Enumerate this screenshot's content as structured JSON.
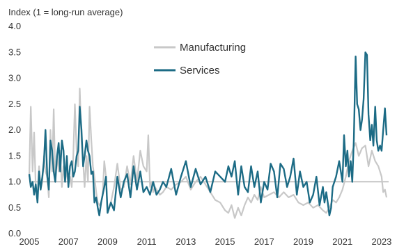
{
  "chart_data": {
    "type": "line",
    "ylabel": "Index (1 = long-run average)",
    "xlabel": "",
    "ylim": [
      0,
      4
    ],
    "yticks": [
      "0.0",
      "0.5",
      "1.0",
      "1.5",
      "2.0",
      "2.5",
      "3.0",
      "3.5",
      "4.0"
    ],
    "xlim": [
      2005,
      2023.5
    ],
    "xticks": [
      "2005",
      "2007",
      "2009",
      "2011",
      "2013",
      "2015",
      "2017",
      "2019",
      "2021",
      "2023"
    ],
    "grid": false,
    "legend_position": "top-center",
    "reference_line": {
      "y": 1.0,
      "color": "#b3b3b3"
    },
    "series": [
      {
        "name": "Manufacturing",
        "color": "#c8c8c8",
        "x": [
          2005.0,
          2005.08,
          2005.17,
          2005.25,
          2005.33,
          2005.42,
          2005.5,
          2005.58,
          2005.67,
          2005.75,
          2005.83,
          2005.92,
          2006.0,
          2006.08,
          2006.17,
          2006.25,
          2006.33,
          2006.42,
          2006.5,
          2006.58,
          2006.67,
          2006.75,
          2006.83,
          2006.92,
          2007.0,
          2007.08,
          2007.17,
          2007.25,
          2007.33,
          2007.42,
          2007.5,
          2007.58,
          2007.67,
          2007.75,
          2007.83,
          2007.92,
          2008.0,
          2008.08,
          2008.17,
          2008.25,
          2008.33,
          2008.42,
          2008.5,
          2008.58,
          2008.67,
          2008.75,
          2008.83,
          2008.92,
          2009.0,
          2009.17,
          2009.33,
          2009.5,
          2009.67,
          2009.83,
          2010.0,
          2010.17,
          2010.33,
          2010.5,
          2010.67,
          2010.83,
          2011.0,
          2011.08,
          2011.17,
          2011.25,
          2011.33,
          2011.42,
          2011.5,
          2011.67,
          2011.83,
          2012.0,
          2012.25,
          2012.5,
          2012.75,
          2013.0,
          2013.25,
          2013.5,
          2013.75,
          2014.0,
          2014.25,
          2014.5,
          2014.75,
          2015.0,
          2015.17,
          2015.33,
          2015.5,
          2015.67,
          2015.83,
          2016.0,
          2016.17,
          2016.33,
          2016.5,
          2016.67,
          2016.83,
          2017.0,
          2017.25,
          2017.5,
          2017.75,
          2018.0,
          2018.25,
          2018.5,
          2018.75,
          2019.0,
          2019.25,
          2019.5,
          2019.75,
          2020.0,
          2020.17,
          2020.33,
          2020.5,
          2020.67,
          2020.83,
          2021.0,
          2021.17,
          2021.33,
          2021.5,
          2021.67,
          2021.83,
          2022.0,
          2022.17,
          2022.33,
          2022.5,
          2022.67,
          2022.83,
          2023.0,
          2023.08,
          2023.17,
          2023.25
        ],
        "values": [
          1.1,
          2.45,
          1.2,
          1.95,
          0.9,
          0.75,
          1.3,
          0.85,
          1.0,
          1.5,
          1.2,
          1.1,
          0.7,
          2.0,
          1.2,
          2.4,
          1.1,
          1.5,
          1.2,
          1.6,
          0.9,
          1.3,
          1.0,
          1.2,
          0.95,
          1.1,
          0.9,
          1.5,
          2.5,
          1.6,
          1.3,
          2.8,
          1.8,
          1.4,
          0.9,
          1.5,
          1.0,
          2.45,
          1.8,
          1.3,
          1.1,
          0.8,
          0.6,
          0.55,
          0.6,
          0.75,
          1.4,
          1.1,
          0.45,
          0.6,
          0.9,
          1.35,
          0.85,
          0.9,
          1.3,
          0.95,
          1.5,
          1.0,
          1.6,
          1.3,
          1.2,
          1.9,
          0.9,
          1.0,
          0.8,
          0.9,
          0.85,
          0.75,
          0.8,
          0.9,
          0.85,
          0.95,
          1.0,
          1.1,
          0.85,
          1.0,
          1.1,
          0.95,
          0.8,
          0.65,
          0.6,
          0.45,
          0.4,
          0.55,
          0.3,
          0.5,
          0.35,
          0.55,
          0.7,
          0.6,
          0.75,
          0.65,
          0.9,
          0.7,
          0.75,
          0.8,
          0.7,
          0.8,
          0.7,
          0.75,
          0.6,
          0.55,
          0.6,
          0.5,
          0.55,
          0.45,
          0.4,
          0.5,
          0.65,
          0.6,
          0.7,
          0.85,
          1.1,
          1.4,
          1.6,
          1.75,
          1.5,
          1.65,
          1.7,
          1.3,
          1.6,
          1.4,
          1.3,
          1.1,
          0.8,
          0.85,
          0.7
        ]
      },
      {
        "name": "Services",
        "color": "#1c6b85",
        "x": [
          2005.0,
          2005.08,
          2005.17,
          2005.25,
          2005.33,
          2005.42,
          2005.5,
          2005.58,
          2005.67,
          2005.75,
          2005.83,
          2005.92,
          2006.0,
          2006.08,
          2006.17,
          2006.25,
          2006.33,
          2006.42,
          2006.5,
          2006.58,
          2006.67,
          2006.75,
          2006.83,
          2006.92,
          2007.0,
          2007.08,
          2007.17,
          2007.25,
          2007.33,
          2007.42,
          2007.5,
          2007.58,
          2007.67,
          2007.75,
          2007.83,
          2007.92,
          2008.0,
          2008.08,
          2008.17,
          2008.25,
          2008.33,
          2008.42,
          2008.5,
          2008.58,
          2008.67,
          2008.75,
          2008.83,
          2008.92,
          2009.0,
          2009.17,
          2009.33,
          2009.5,
          2009.67,
          2009.83,
          2010.0,
          2010.17,
          2010.33,
          2010.5,
          2010.67,
          2010.83,
          2011.0,
          2011.17,
          2011.33,
          2011.5,
          2011.67,
          2011.83,
          2012.0,
          2012.25,
          2012.5,
          2012.75,
          2013.0,
          2013.25,
          2013.5,
          2013.75,
          2014.0,
          2014.25,
          2014.5,
          2014.75,
          2015.0,
          2015.17,
          2015.33,
          2015.5,
          2015.67,
          2015.83,
          2016.0,
          2016.17,
          2016.33,
          2016.5,
          2016.67,
          2016.83,
          2017.0,
          2017.17,
          2017.33,
          2017.5,
          2017.67,
          2017.83,
          2018.0,
          2018.17,
          2018.33,
          2018.5,
          2018.67,
          2018.83,
          2019.0,
          2019.17,
          2019.33,
          2019.5,
          2019.67,
          2019.83,
          2020.0,
          2020.08,
          2020.17,
          2020.25,
          2020.33,
          2020.42,
          2020.5,
          2020.67,
          2020.83,
          2021.0,
          2021.08,
          2021.17,
          2021.25,
          2021.33,
          2021.42,
          2021.5,
          2021.58,
          2021.67,
          2021.75,
          2021.83,
          2021.92,
          2022.0,
          2022.08,
          2022.17,
          2022.25,
          2022.33,
          2022.42,
          2022.5,
          2022.58,
          2022.67,
          2022.75,
          2022.83,
          2022.92,
          2023.0,
          2023.08,
          2023.17,
          2023.25
        ],
        "values": [
          1.15,
          0.9,
          1.0,
          0.75,
          0.95,
          0.6,
          1.2,
          0.85,
          1.1,
          1.4,
          2.0,
          1.1,
          0.85,
          1.8,
          1.6,
          1.2,
          1.0,
          1.5,
          1.75,
          1.2,
          1.8,
          1.6,
          1.0,
          1.5,
          0.9,
          1.3,
          1.4,
          1.1,
          1.2,
          1.5,
          1.6,
          2.45,
          2.0,
          1.3,
          1.5,
          1.8,
          1.6,
          1.5,
          1.15,
          1.2,
          0.6,
          0.7,
          0.5,
          0.35,
          0.6,
          0.75,
          0.9,
          1.1,
          0.4,
          0.6,
          0.45,
          1.1,
          0.7,
          1.0,
          1.15,
          0.7,
          1.3,
          0.85,
          1.2,
          0.8,
          0.9,
          0.75,
          1.0,
          0.75,
          0.85,
          1.0,
          0.9,
          1.25,
          0.75,
          1.1,
          1.4,
          0.9,
          1.25,
          0.95,
          1.1,
          0.8,
          1.2,
          1.1,
          1.0,
          1.3,
          1.1,
          1.4,
          0.75,
          1.3,
          0.9,
          0.8,
          1.3,
          0.9,
          1.2,
          0.6,
          1.0,
          0.85,
          1.35,
          1.2,
          0.7,
          1.35,
          1.25,
          0.9,
          1.1,
          1.45,
          0.75,
          1.2,
          0.9,
          1.0,
          0.6,
          0.75,
          1.1,
          0.55,
          0.9,
          0.6,
          0.8,
          0.6,
          0.35,
          0.5,
          0.9,
          1.1,
          1.4,
          1.0,
          1.9,
          1.3,
          1.6,
          1.1,
          1.4,
          1.0,
          1.8,
          3.42,
          2.5,
          2.4,
          2.0,
          2.2,
          2.6,
          3.5,
          3.45,
          2.3,
          1.8,
          2.1,
          1.7,
          2.45,
          1.8,
          1.6,
          1.7,
          1.6,
          2.0,
          2.42,
          1.9
        ]
      }
    ]
  }
}
